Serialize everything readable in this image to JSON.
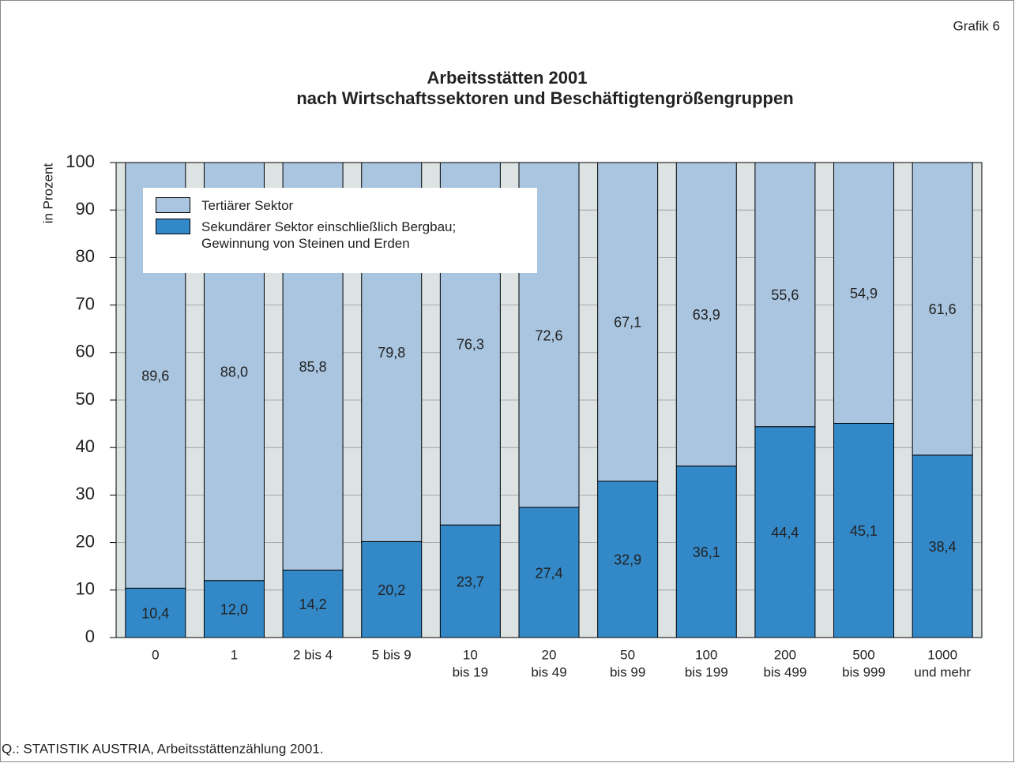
{
  "chart_data": {
    "type": "stacked_bar",
    "label": "Grafik 6",
    "title": "Arbeitsstätten 2001",
    "subtitle": "nach Wirtschaftssektoren und Beschäftigtengrößengruppen",
    "y_label": "in Prozent",
    "source": "Q.: STATISTIK AUSTRIA, Arbeitsstättenzählung 2001.",
    "categories": [
      [
        "0"
      ],
      [
        "1"
      ],
      [
        "2 bis 4"
      ],
      [
        "5 bis 9"
      ],
      [
        "10",
        "bis 19"
      ],
      [
        "20",
        "bis 49"
      ],
      [
        "50",
        "bis 99"
      ],
      [
        "100",
        "bis 199"
      ],
      [
        "200",
        "bis 499"
      ],
      [
        "500",
        "bis 999"
      ],
      [
        "1000",
        "und mehr"
      ]
    ],
    "series": [
      {
        "name": "Sekundärer Sektor einschließlich Bergbau; Gewinnung von Steinen und Erden",
        "color": "#3388c8",
        "values": [
          10.4,
          12.0,
          14.2,
          20.2,
          23.7,
          27.4,
          32.9,
          36.1,
          44.4,
          45.1,
          38.4
        ],
        "value_labels": [
          "10,4",
          "12,0",
          "14,2",
          "20,2",
          "23,7",
          "27,4",
          "32,9",
          "36,1",
          "44,4",
          "45,1",
          "38,4"
        ]
      },
      {
        "name": "Tertiärer Sektor",
        "color": "#a9c5e0",
        "values": [
          89.6,
          88.0,
          85.8,
          79.8,
          76.3,
          72.6,
          67.1,
          63.9,
          55.6,
          54.9,
          61.6
        ],
        "value_labels": [
          "89,6",
          "88,0",
          "85,8",
          "79,8",
          "76,3",
          "72,6",
          "67,1",
          "63,9",
          "55,6",
          "54,9",
          "61,6"
        ]
      }
    ],
    "ylim": [
      0,
      100
    ],
    "yticks": [
      0,
      10,
      20,
      30,
      40,
      50,
      60,
      70,
      80,
      90,
      100
    ],
    "grid": true,
    "plot_background": "#dde3e3"
  }
}
